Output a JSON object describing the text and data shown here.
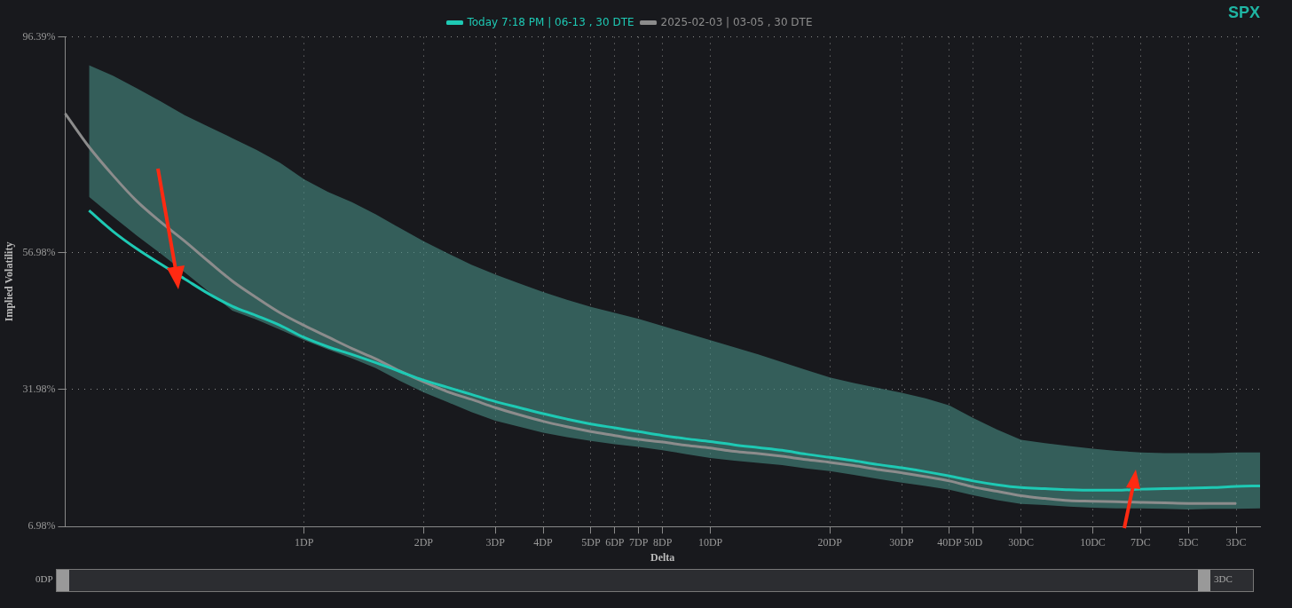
{
  "chart_data": {
    "type": "line",
    "title": "SPX",
    "xlabel": "Delta",
    "ylabel": "Implied Volatility",
    "categories": [
      null,
      null,
      null,
      null,
      null,
      null,
      null,
      null,
      null,
      null,
      "1DP",
      null,
      null,
      null,
      null,
      "2DP",
      null,
      null,
      "3DP",
      null,
      "4DP",
      null,
      "5DP",
      "6DP",
      "7DP",
      "8DP",
      null,
      "10DP",
      null,
      null,
      null,
      null,
      "20DP",
      null,
      null,
      "30DP",
      null,
      "40DP",
      "50D",
      null,
      "30DC",
      null,
      null,
      "10DC",
      null,
      "7DC",
      null,
      "5DC",
      null,
      "3DC",
      null
    ],
    "ylim": [
      6.98,
      96.39
    ],
    "yticks": [
      {
        "value": 6.98,
        "label": "6.98%"
      },
      {
        "value": 31.98,
        "label": "31.98%"
      },
      {
        "value": 56.98,
        "label": "56.98%"
      },
      {
        "value": 96.39,
        "label": "96.39%"
      }
    ],
    "grid": true,
    "legend": "top",
    "marker": "none",
    "line_style": "solid",
    "annotations": [
      "0DP",
      "3DC"
    ],
    "series": [
      {
        "name": "Today 7:18 PM | 06-13 , 30 DTE",
        "color": "#1ec9b4",
        "values": [
          null,
          64.7,
          60.9,
          57.7,
          54.9,
          52.2,
          49.5,
          47.2,
          45.5,
          43.7,
          41.5,
          39.8,
          38.4,
          36.9,
          35.3,
          33.7,
          32.4,
          31.1,
          29.8,
          28.7,
          27.6,
          26.6,
          25.7,
          25.0,
          24.3,
          23.6,
          23.0,
          22.5,
          21.9,
          21.4,
          20.9,
          20.2,
          19.6,
          19.0,
          18.3,
          17.7,
          17.0,
          16.2,
          15.3,
          14.6,
          14.1,
          13.9,
          13.7,
          13.6,
          13.6,
          13.8,
          13.9,
          14.0,
          14.1,
          14.3,
          14.4
        ],
        "upper": [
          null,
          91.2,
          89.3,
          87.0,
          84.6,
          82.1,
          80.0,
          77.9,
          75.8,
          73.4,
          70.4,
          68.1,
          66.2,
          64.0,
          61.5,
          59.1,
          56.9,
          54.8,
          53.0,
          51.4,
          49.8,
          48.4,
          47.1,
          46.0,
          44.9,
          43.6,
          42.3,
          41.0,
          39.7,
          38.4,
          37.0,
          35.6,
          34.2,
          33.2,
          32.3,
          31.4,
          30.4,
          29.1,
          26.8,
          24.7,
          22.8,
          22.2,
          21.7,
          21.2,
          20.8,
          20.5,
          20.4,
          20.4,
          20.4,
          20.5,
          20.5
        ],
        "lower": [
          null,
          67.2,
          63.6,
          60.1,
          56.8,
          53.4,
          49.9,
          46.4,
          44.8,
          42.9,
          41.0,
          39.3,
          37.7,
          35.9,
          33.6,
          31.5,
          29.7,
          27.9,
          26.3,
          25.2,
          24.1,
          23.3,
          22.6,
          22.0,
          21.5,
          20.9,
          20.2,
          19.5,
          19.0,
          18.6,
          18.2,
          17.6,
          17.1,
          16.4,
          15.7,
          15.0,
          14.4,
          13.7,
          12.7,
          11.8,
          11.1,
          10.9,
          10.6,
          10.4,
          10.3,
          10.3,
          10.2,
          10.1,
          10.2,
          10.2,
          10.3
        ]
      },
      {
        "name": "2025-02-03 | 03-05 , 30 DTE",
        "color": "#8c8c8c",
        "values": [
          82.4,
          76.3,
          71.1,
          66.4,
          62.6,
          59.1,
          55.4,
          51.8,
          48.8,
          46.0,
          43.7,
          41.6,
          39.5,
          37.6,
          35.4,
          33.4,
          31.6,
          30.2,
          28.7,
          27.4,
          26.2,
          25.2,
          24.3,
          23.6,
          22.9,
          22.4,
          21.8,
          21.3,
          20.7,
          20.3,
          19.8,
          19.2,
          18.7,
          18.1,
          17.4,
          16.8,
          16.1,
          15.3,
          14.2,
          13.4,
          12.6,
          12.1,
          11.7,
          11.6,
          11.5,
          11.4,
          11.3,
          11.2,
          11.2,
          11.2,
          null
        ]
      }
    ]
  }
}
